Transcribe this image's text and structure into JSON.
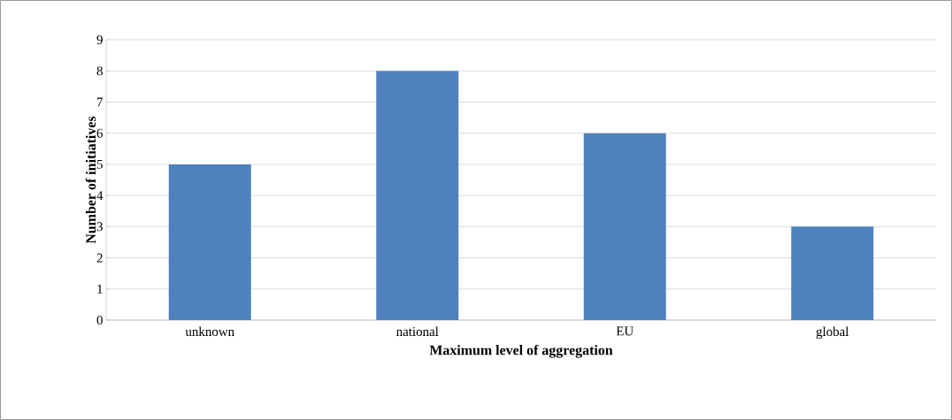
{
  "chart_data": {
    "type": "bar",
    "xlabel": "Maximum level of aggregation",
    "ylabel": "Number of initiatives",
    "categories": [
      "unknown",
      "national",
      "EU",
      "global"
    ],
    "values": [
      5,
      8,
      6,
      3
    ],
    "color": "#4f81bd",
    "ylim": [
      0,
      9
    ],
    "yticks": [
      0,
      1,
      2,
      3,
      4,
      5,
      6,
      7,
      8,
      9
    ],
    "grid": "y"
  }
}
